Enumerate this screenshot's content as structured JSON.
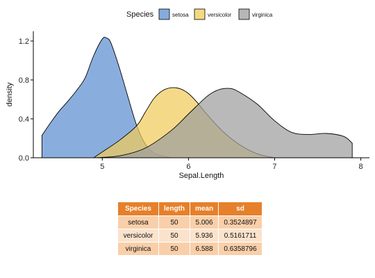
{
  "chart_data": {
    "type": "area",
    "subtype": "density",
    "xlabel": "Sepal.Length",
    "ylabel": "density",
    "xlim": [
      4.2,
      8.1
    ],
    "ylim": [
      0,
      1.3
    ],
    "x_ticks": [
      5,
      6,
      7,
      8
    ],
    "y_ticks": [
      0.0,
      0.4,
      0.8,
      1.2
    ],
    "y_tick_labels": [
      "0.0",
      "0.4",
      "0.8",
      "1.2"
    ],
    "grid": false,
    "legend": {
      "title": "Species",
      "position": "top",
      "entries": [
        "setosa",
        "versicolor",
        "virginica"
      ]
    },
    "series": [
      {
        "name": "setosa",
        "color": "#5b8fd0",
        "x": [
          4.3,
          4.4,
          4.5,
          4.6,
          4.7,
          4.8,
          4.9,
          5.0,
          5.05,
          5.1,
          5.2,
          5.3,
          5.4,
          5.5,
          5.6,
          5.7,
          5.8
        ],
        "y": [
          0.23,
          0.36,
          0.48,
          0.58,
          0.69,
          0.82,
          1.05,
          1.22,
          1.23,
          1.18,
          0.92,
          0.62,
          0.33,
          0.14,
          0.05,
          0.02,
          0.0
        ]
      },
      {
        "name": "versicolor",
        "color": "#f0cc5a",
        "x": [
          4.9,
          5.0,
          5.2,
          5.4,
          5.5,
          5.6,
          5.7,
          5.8,
          5.9,
          6.0,
          6.1,
          6.2,
          6.4,
          6.6,
          6.8,
          7.0
        ],
        "y": [
          0.0,
          0.06,
          0.18,
          0.33,
          0.47,
          0.61,
          0.69,
          0.72,
          0.71,
          0.66,
          0.57,
          0.46,
          0.27,
          0.13,
          0.04,
          0.0
        ]
      },
      {
        "name": "virginica",
        "color": "#9e9e9e",
        "x": [
          4.9,
          5.2,
          5.5,
          5.8,
          6.0,
          6.2,
          6.3,
          6.4,
          6.5,
          6.6,
          6.8,
          7.0,
          7.2,
          7.4,
          7.6,
          7.8,
          7.9
        ],
        "y": [
          0.0,
          0.02,
          0.1,
          0.28,
          0.45,
          0.62,
          0.68,
          0.71,
          0.71,
          0.67,
          0.55,
          0.38,
          0.26,
          0.24,
          0.25,
          0.22,
          0.15
        ]
      }
    ]
  },
  "table": {
    "headers": [
      "Species",
      "length",
      "mean",
      "sd"
    ],
    "rows": [
      [
        "setosa",
        "50",
        "5.006",
        "0.3524897"
      ],
      [
        "versicolor",
        "50",
        "5.936",
        "0.5161711"
      ],
      [
        "virginica",
        "50",
        "6.588",
        "0.6358796"
      ]
    ],
    "header_color": "#e6802a",
    "row_colors": [
      "#f9cfa9",
      "#fbe2cc"
    ]
  }
}
